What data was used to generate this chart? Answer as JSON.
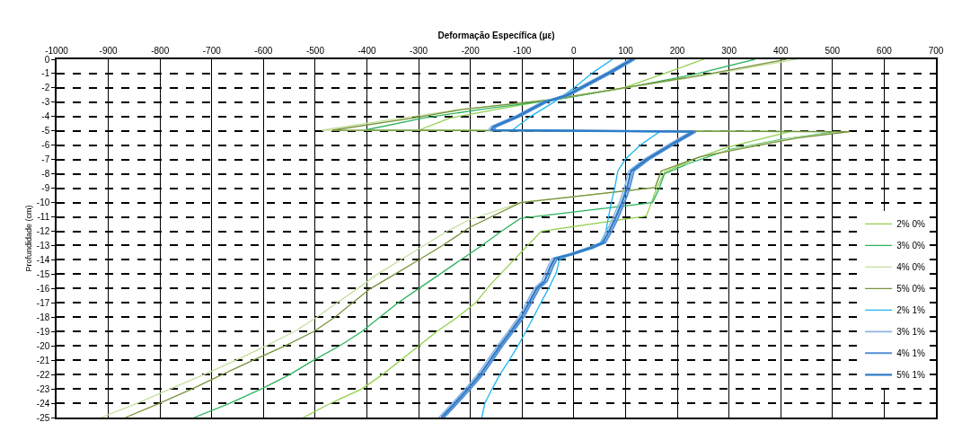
{
  "chart_data": {
    "type": "line",
    "xlabel": "Deformação Específica (µε)",
    "ylabel": "Profundidade (cm)",
    "xlim": [
      -1000,
      700
    ],
    "xticks": [
      -1000,
      -900,
      -800,
      -700,
      -600,
      -500,
      -400,
      -300,
      -200,
      -100,
      0,
      100,
      200,
      300,
      400,
      500,
      600,
      700
    ],
    "ylim": [
      -25,
      0
    ],
    "yticks": [
      -25,
      -24,
      -23,
      -22,
      -21,
      -20,
      -19,
      -18,
      -17,
      -16,
      -15,
      -14,
      -13,
      -12,
      -11,
      -10,
      -9,
      -8,
      -7,
      -6,
      -5,
      -4,
      -3,
      -2,
      -1,
      0
    ],
    "grid": true,
    "legend": "right",
    "series": [
      {
        "name": "2% 0%",
        "color": "#92d050",
        "x": [
          251,
          175,
          96,
          -40,
          -150,
          -239,
          -300,
          418,
          296,
          230,
          175,
          160,
          150,
          140,
          -63,
          -161,
          -190,
          -225,
          -265,
          -300,
          -335,
          -370,
          -410,
          -470,
          -523
        ],
        "values": [
          0,
          -1,
          -2,
          -2.8,
          -3.5,
          -4.1,
          -4.95,
          -5.05,
          -6.15,
          -7,
          -7.9,
          -9,
          -10,
          -10.95,
          -12,
          -15.7,
          -17,
          -18,
          -19,
          -20,
          -21,
          -22,
          -23,
          -24,
          -25
        ]
      },
      {
        "name": "3% 0%",
        "color": "#2db35d",
        "x": [
          350,
          240,
          100,
          -30,
          -180,
          -290,
          -405,
          508,
          400,
          300,
          220,
          175,
          165,
          152,
          -103,
          -140,
          -178,
          -219,
          -259,
          -300,
          -340,
          -375,
          -410,
          -453,
          -503,
          -549,
          -604,
          -665,
          -734
        ],
        "values": [
          0,
          -1,
          -2,
          -2.8,
          -3.5,
          -4.1,
          -4.95,
          -5.05,
          -5.6,
          -6.3,
          -7.3,
          -8,
          -9,
          -10,
          -11.1,
          -12,
          -13,
          -14,
          -15,
          -16,
          -17,
          -18,
          -19,
          -20,
          -21,
          -22,
          -23,
          -24,
          -25
        ]
      },
      {
        "name": "4% 0%",
        "color": "#c4dfa0",
        "x": [
          430,
          275,
          100,
          -40,
          -220,
          -330,
          -488,
          522,
          420,
          320,
          244,
          169,
          157,
          -103,
          -202,
          -245,
          -290,
          -335,
          -380,
          -418,
          -458,
          -497,
          -540,
          -595,
          -653,
          -715,
          -780,
          -844,
          -914
        ],
        "values": [
          0,
          -1,
          -2,
          -2.8,
          -3.5,
          -4.1,
          -4.95,
          -5.05,
          -5.5,
          -6.2,
          -6.8,
          -7.8,
          -8.95,
          -10,
          -11.2,
          -12,
          -13,
          -14,
          -15,
          -16,
          -17,
          -18,
          -19,
          -20,
          -21,
          -22,
          -23,
          -24,
          -25
        ]
      },
      {
        "name": "5% 0%",
        "color": "#77933c",
        "x": [
          411,
          265,
          96,
          -40,
          -215,
          -310,
          -467,
          534,
          430,
          330,
          244,
          169,
          157,
          -103,
          -200,
          -254,
          -300,
          -346,
          -393,
          -428,
          -462,
          -503,
          -558,
          -620,
          -680,
          -738,
          -801,
          -867
        ],
        "values": [
          0,
          -1,
          -2,
          -2.8,
          -3.5,
          -4.1,
          -4.95,
          -5.05,
          -5.5,
          -6.2,
          -6.8,
          -7.8,
          -8.95,
          -10,
          -11.7,
          -13,
          -14,
          -15,
          -16,
          -17,
          -18,
          -19,
          -20,
          -21,
          -22,
          -23,
          -24,
          -25
        ]
      },
      {
        "name": "2% 1%",
        "color": "#1fb7ef",
        "x": [
          75,
          38,
          0,
          -39,
          -84,
          -110,
          -119,
          166,
          128,
          99,
          85,
          79,
          73,
          67,
          62,
          53,
          37,
          -5,
          -28,
          -34,
          -49,
          -64,
          -78,
          -93,
          -108,
          -125,
          -143,
          -158,
          -172,
          -178
        ],
        "values": [
          0,
          -0.9,
          -2,
          -3,
          -4,
          -4.7,
          -4.95,
          -5.05,
          -6,
          -7,
          -7.8,
          -9,
          -9.9,
          -11,
          -12,
          -12.8,
          -13.2,
          -13.6,
          -14,
          -14.9,
          -16,
          -17,
          -18,
          -19,
          -20,
          -21,
          -22,
          -23,
          -24,
          -25
        ]
      },
      {
        "name": "3% 1%",
        "color": "#8db4e2",
        "x": [
          108,
          65,
          8,
          -18,
          -63,
          -115,
          -160,
          -165,
          226,
          181,
          135,
          106,
          97,
          89,
          74,
          63,
          51,
          31,
          -10,
          -42,
          -50,
          -62,
          -77,
          -92,
          -107,
          -127,
          -148,
          -167,
          -186,
          -210,
          -235,
          -261
        ],
        "values": [
          0,
          -0.9,
          -2,
          -2.5,
          -3,
          -4,
          -4.7,
          -4.95,
          -5.05,
          -6,
          -7,
          -7.8,
          -9.1,
          -9.9,
          -11.2,
          -12,
          -12.8,
          -13.1,
          -13.6,
          -13.9,
          -14.45,
          -15.5,
          -16,
          -17,
          -18,
          -19,
          -20,
          -21,
          -22,
          -23,
          -24,
          -25
        ]
      },
      {
        "name": "4% 1%",
        "color": "#558ed5",
        "x": [
          118,
          75,
          18,
          -8,
          -53,
          -105,
          -150,
          -155,
          236,
          191,
          145,
          116,
          107,
          99,
          84,
          73,
          61,
          41,
          0,
          -32,
          -40,
          -52,
          -67,
          -82,
          -97,
          -117,
          -138,
          -157,
          -176,
          -200,
          -225,
          -251
        ],
        "values": [
          0,
          -0.9,
          -2,
          -2.5,
          -3,
          -4,
          -4.7,
          -4.95,
          -5.05,
          -6,
          -7,
          -7.8,
          -9.1,
          -9.9,
          -11.2,
          -12,
          -12.8,
          -13.1,
          -13.6,
          -13.9,
          -14.45,
          -15.5,
          -16,
          -17,
          -18,
          -19,
          -20,
          -21,
          -22,
          -23,
          -24,
          -25
        ]
      },
      {
        "name": "5% 1%",
        "color": "#2e7dc6",
        "x": [
          113,
          70,
          13,
          -13,
          -58,
          -110,
          -155,
          -160,
          231,
          186,
          140,
          111,
          102,
          94,
          79,
          68,
          56,
          36,
          -5,
          -37,
          -45,
          -57,
          -72,
          -87,
          -102,
          -122,
          -143,
          -162,
          -181,
          -205,
          -230,
          -256
        ],
        "values": [
          0,
          -0.9,
          -2,
          -2.5,
          -3,
          -4,
          -4.7,
          -4.95,
          -5.05,
          -6,
          -7,
          -7.8,
          -9.1,
          -9.9,
          -11.2,
          -12,
          -12.8,
          -13.1,
          -13.6,
          -13.9,
          -14.45,
          -15.5,
          -16,
          -17,
          -18,
          -19,
          -20,
          -21,
          -22,
          -23,
          -24,
          -25
        ]
      }
    ]
  }
}
